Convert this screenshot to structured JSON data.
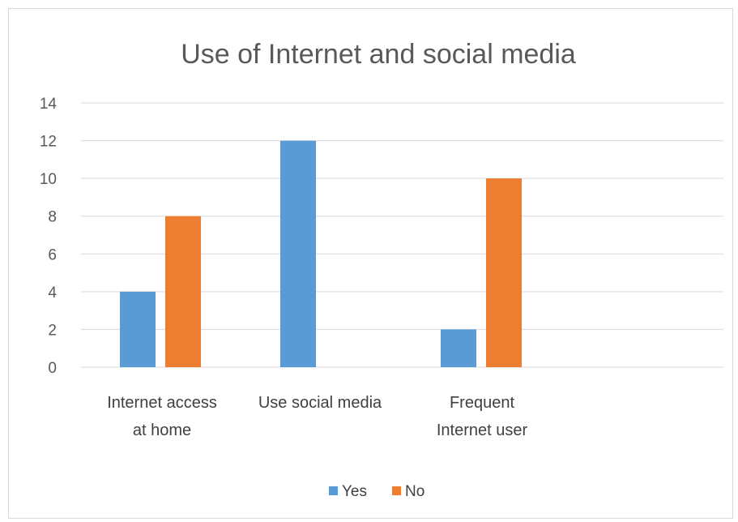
{
  "chart_data": {
    "type": "bar",
    "title": "Use of Internet and social media",
    "categories": [
      [
        "Internet access",
        "at home"
      ],
      [
        "Use social media"
      ],
      [
        "Frequent",
        "Internet user"
      ]
    ],
    "series": [
      {
        "name": "Yes",
        "color": "#5b9bd5",
        "values": [
          4,
          12,
          2
        ]
      },
      {
        "name": "No",
        "color": "#ed7d31",
        "values": [
          8,
          0,
          10
        ]
      }
    ],
    "ylim": [
      0,
      14
    ],
    "yticks": [
      0,
      2,
      4,
      6,
      8,
      10,
      12,
      14
    ],
    "grid": true,
    "legend_position": "bottom"
  }
}
